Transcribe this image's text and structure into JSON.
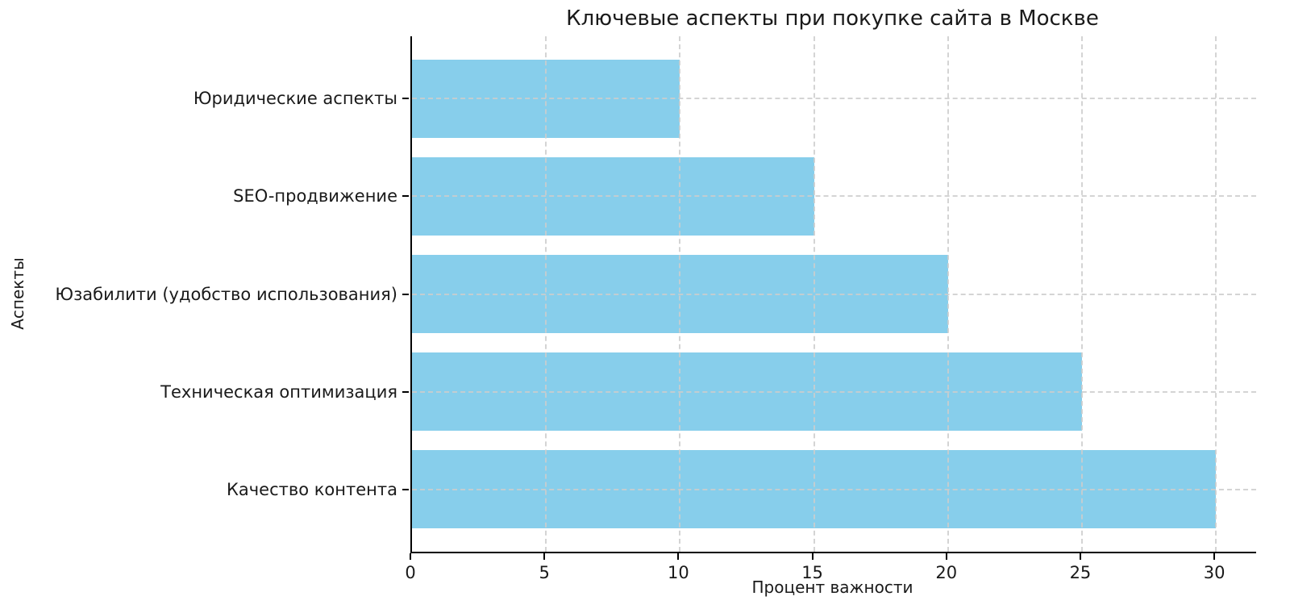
{
  "chart_data": {
    "type": "bar",
    "orientation": "horizontal",
    "title": "Ключевые аспекты при покупке сайта в Москве",
    "xlabel": "Процент важности",
    "ylabel": "Аспекты",
    "categories": [
      "Юридические аспекты",
      "SEO-продвижение",
      "Юзабилити (удобство использования)",
      "Техническая оптимизация",
      "Качество контента"
    ],
    "values": [
      10,
      15,
      20,
      25,
      30
    ],
    "xticks": [
      0,
      5,
      10,
      15,
      20,
      25,
      30
    ],
    "xlim": [
      0,
      31.5
    ],
    "ylim": [
      -0.64,
      4.64
    ],
    "bar_height_units": 0.8,
    "bar_color": "#87CEEB",
    "grid": true,
    "grid_style": "dashed",
    "grid_color": "#cccccc",
    "axis_color": "#000000",
    "text_color": "#1a1a1a",
    "background": "#ffffff",
    "legend": "none"
  }
}
